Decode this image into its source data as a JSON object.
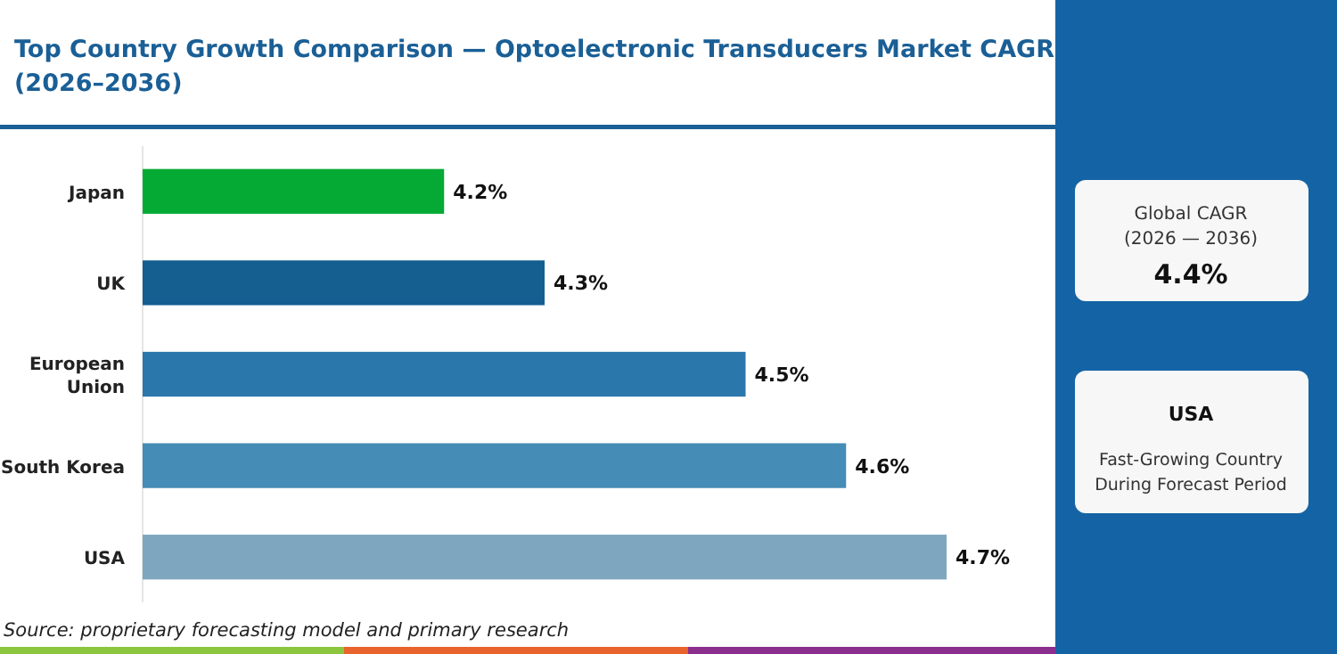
{
  "chart_data": {
    "type": "bar",
    "orientation": "horizontal",
    "title": "Top Country Growth Comparison — Optoelectronic Transducers Market CAGR (2026–2036)",
    "categories": [
      "Japan",
      "UK",
      "European Union",
      "South Korea",
      "USA"
    ],
    "values": [
      4.2,
      4.3,
      4.5,
      4.6,
      4.7
    ],
    "colors": [
      "#05aa34",
      "#155e90",
      "#2a78ab",
      "#458cb6",
      "#7fa6bf"
    ],
    "value_labels": [
      "4.2%",
      "4.3%",
      "4.5%",
      "4.6%",
      "4.7%"
    ],
    "xlim": [
      3.9,
      4.7
    ],
    "tick_labels": "y",
    "annotations": [
      "Source: proprietary forecasting model and primary research",
      "Global CAGR",
      "(2026 — 2036)",
      "4.4%",
      "USA",
      "Fast-Growing Country",
      "During Forecast Period"
    ]
  }
}
